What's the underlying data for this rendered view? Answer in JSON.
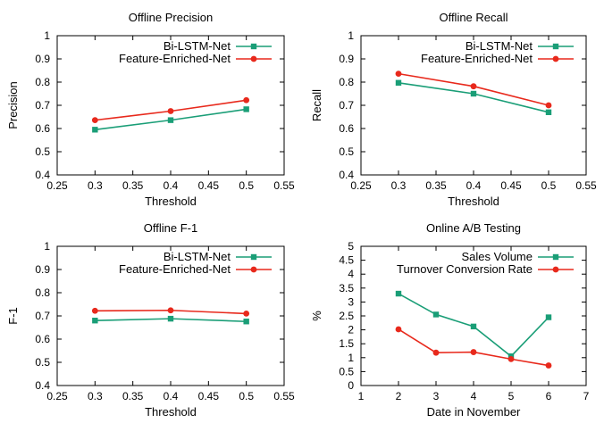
{
  "colors": {
    "series1": "#1a9e77",
    "series2": "#e8291c",
    "axis": "#000000"
  },
  "chart_data": [
    {
      "type": "line",
      "title": "Offline Precision",
      "xlabel": "Threshold",
      "ylabel": "Precision",
      "xlim": [
        0.25,
        0.55
      ],
      "ylim": [
        0.4,
        1.0
      ],
      "xticks": [
        "0.25",
        "0.3",
        "0.35",
        "0.4",
        "0.45",
        "0.5",
        "0.55"
      ],
      "yticks": [
        "0.4",
        "0.5",
        "0.6",
        "0.7",
        "0.8",
        "0.9",
        "1"
      ],
      "grid": false,
      "legend_position": "top-right",
      "x": [
        0.3,
        0.4,
        0.5
      ],
      "series": [
        {
          "name": "Bi-LSTM-Net",
          "marker": "square",
          "color": "#1a9e77",
          "values": [
            0.595,
            0.636,
            0.683
          ]
        },
        {
          "name": "Feature-Enriched-Net",
          "marker": "circle",
          "color": "#e8291c",
          "values": [
            0.636,
            0.675,
            0.722
          ]
        }
      ]
    },
    {
      "type": "line",
      "title": "Offline Recall",
      "xlabel": "Threshold",
      "ylabel": "Recall",
      "xlim": [
        0.25,
        0.55
      ],
      "ylim": [
        0.4,
        1.0
      ],
      "xticks": [
        "0.25",
        "0.3",
        "0.35",
        "0.4",
        "0.45",
        "0.5",
        "0.55"
      ],
      "yticks": [
        "0.4",
        "0.5",
        "0.6",
        "0.7",
        "0.8",
        "0.9",
        "1"
      ],
      "grid": false,
      "legend_position": "top-right",
      "x": [
        0.3,
        0.4,
        0.5
      ],
      "series": [
        {
          "name": "Bi-LSTM-Net",
          "marker": "square",
          "color": "#1a9e77",
          "values": [
            0.797,
            0.75,
            0.67
          ]
        },
        {
          "name": "Feature-Enriched-Net",
          "marker": "circle",
          "color": "#e8291c",
          "values": [
            0.836,
            0.782,
            0.7
          ]
        }
      ]
    },
    {
      "type": "line",
      "title": "Offline F-1",
      "xlabel": "Threshold",
      "ylabel": "F-1",
      "xlim": [
        0.25,
        0.55
      ],
      "ylim": [
        0.4,
        1.0
      ],
      "xticks": [
        "0.25",
        "0.3",
        "0.35",
        "0.4",
        "0.45",
        "0.5",
        "0.55"
      ],
      "yticks": [
        "0.4",
        "0.5",
        "0.6",
        "0.7",
        "0.8",
        "0.9",
        "1"
      ],
      "grid": false,
      "legend_position": "top-right",
      "x": [
        0.3,
        0.4,
        0.5
      ],
      "series": [
        {
          "name": "Bi-LSTM-Net",
          "marker": "square",
          "color": "#1a9e77",
          "values": [
            0.68,
            0.688,
            0.676
          ]
        },
        {
          "name": "Feature-Enriched-Net",
          "marker": "circle",
          "color": "#e8291c",
          "values": [
            0.722,
            0.724,
            0.71
          ]
        }
      ]
    },
    {
      "type": "line",
      "title": "Online A/B Testing",
      "xlabel": "Date in November",
      "ylabel": "%",
      "xlim": [
        1,
        7
      ],
      "ylim": [
        0,
        5
      ],
      "xticks": [
        "1",
        "2",
        "3",
        "4",
        "5",
        "6",
        "7"
      ],
      "yticks": [
        "0",
        "0.5",
        "1",
        "1.5",
        "2",
        "2.5",
        "3",
        "3.5",
        "4",
        "4.5",
        "5"
      ],
      "grid": false,
      "legend_position": "top-right",
      "x": [
        2,
        3,
        4,
        5,
        6
      ],
      "series": [
        {
          "name": "Sales Volume",
          "marker": "square",
          "color": "#1a9e77",
          "values": [
            3.3,
            2.55,
            2.12,
            1.05,
            2.45
          ]
        },
        {
          "name": "Turnover Conversion Rate",
          "marker": "circle",
          "color": "#e8291c",
          "values": [
            2.02,
            1.18,
            1.2,
            0.95,
            0.72
          ]
        }
      ]
    }
  ]
}
